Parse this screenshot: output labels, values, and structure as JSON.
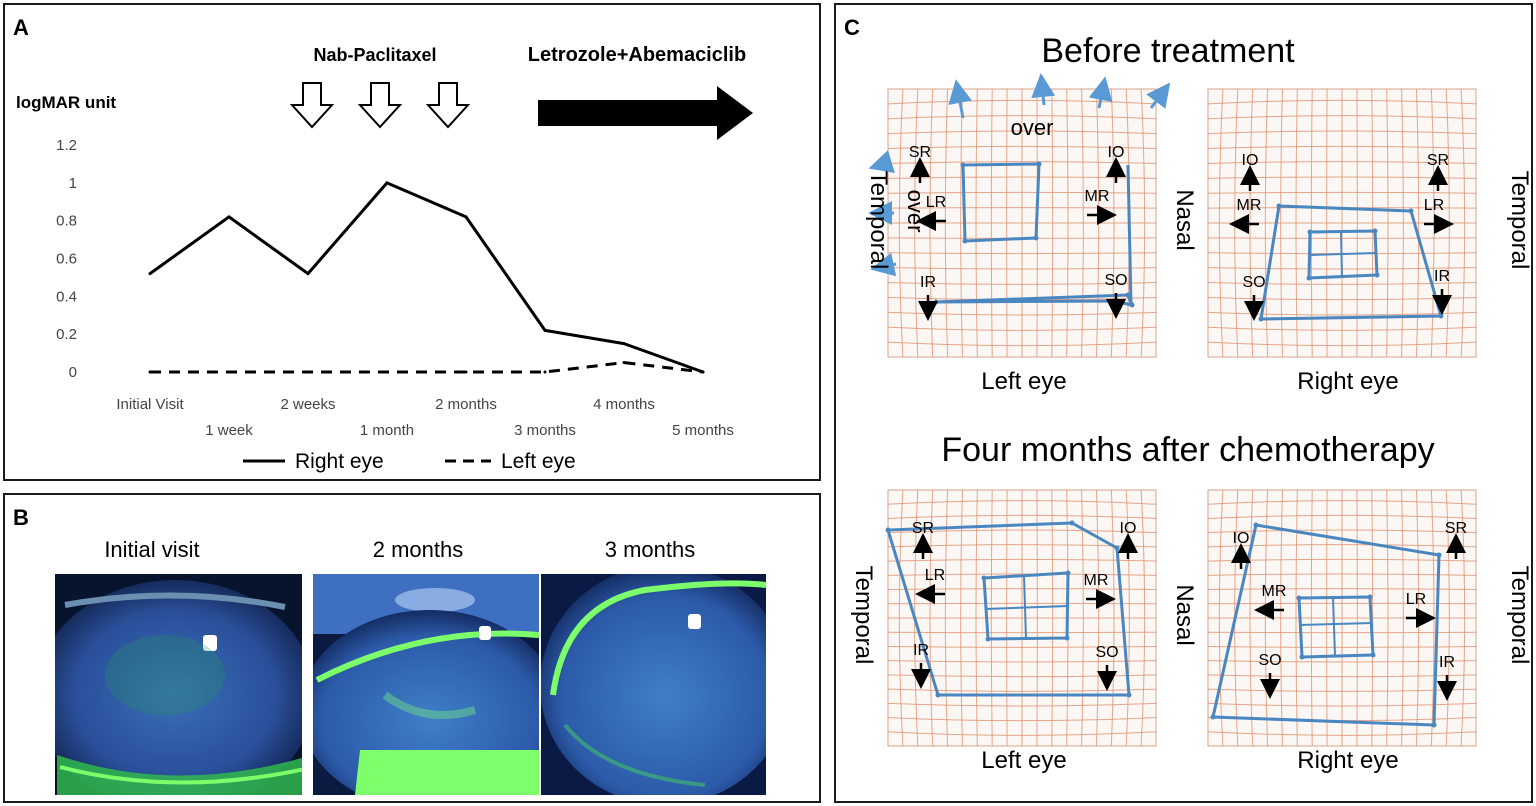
{
  "panel_a": {
    "letter": "A",
    "treatment_1": "Nab-Paclitaxel",
    "treatment_2": "Letrozole+Abemaciclib",
    "y_unit": "logMAR unit"
  },
  "chart_data": {
    "type": "line",
    "title": "",
    "ylabel": "logMAR unit",
    "xlabel": "",
    "categories": [
      "Initial Visit",
      "1 week",
      "2 weeks",
      "1 month",
      "2 months",
      "3 months",
      "4 months",
      "5 months"
    ],
    "yticks": [
      "0",
      "0.2",
      "0.4",
      "0.6",
      "0.8",
      "1",
      "1.2"
    ],
    "ylim": [
      0,
      1.2
    ],
    "grid": false,
    "legend_position": "bottom",
    "series": [
      {
        "name": "Right eye",
        "style": "solid",
        "values": [
          0.52,
          0.82,
          0.52,
          1.0,
          0.82,
          0.22,
          0.15,
          0.0
        ]
      },
      {
        "name": "Left eye",
        "style": "dashed",
        "values": [
          0,
          0,
          0,
          0,
          0,
          0,
          0.05,
          0.0
        ]
      }
    ]
  },
  "panel_b": {
    "letter": "B",
    "photo_labels": [
      "Initial visit",
      "2 months",
      "3 months"
    ]
  },
  "panel_c": {
    "letter": "C",
    "before_title": "Before treatment",
    "after_title": "Four months after chemotherapy",
    "left_eye": "Left eye",
    "right_eye": "Right eye",
    "temporal": "Temporal",
    "nasal": "Nasal",
    "over": "over",
    "muscles": {
      "sr": "SR",
      "io": "IO",
      "lr": "LR",
      "mr": "MR",
      "ir": "IR",
      "so": "SO"
    }
  },
  "colors": {
    "grid": "#e2906e",
    "trace": "#4a86c0",
    "over_arrow": "#5a9ad4",
    "photo_bg": "#0a1a40",
    "fluor": "#5ce05a"
  }
}
